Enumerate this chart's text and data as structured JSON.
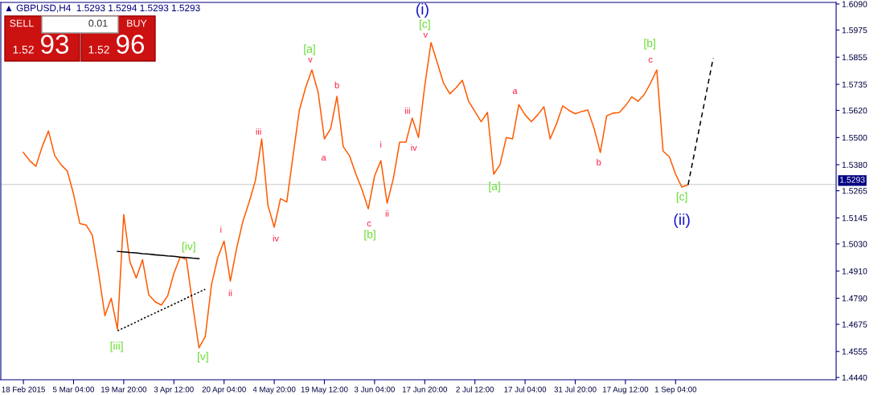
{
  "chart_data": {
    "type": "line",
    "title": "▲ GBPUSD,H4  1.5293 1.5294 1.5293 1.5293",
    "categories": [
      "18 Feb 2015",
      null,
      null,
      null,
      null,
      null,
      null,
      null,
      "5 Mar 04:00",
      null,
      null,
      null,
      null,
      null,
      null,
      null,
      "19 Mar 20:00",
      null,
      null,
      null,
      null,
      null,
      null,
      null,
      "3 Apr 12:00",
      null,
      null,
      null,
      null,
      null,
      null,
      null,
      "20 Apr 04:00",
      null,
      null,
      null,
      null,
      null,
      null,
      null,
      "4 May 20:00",
      null,
      null,
      null,
      null,
      null,
      null,
      null,
      "19 May 12:00",
      null,
      null,
      null,
      null,
      null,
      null,
      null,
      "3 Jun 04:00",
      null,
      null,
      null,
      null,
      null,
      null,
      null,
      "17 Jun 20:00",
      null,
      null,
      null,
      null,
      null,
      null,
      null,
      "2 Jul 12:00",
      null,
      null,
      null,
      null,
      null,
      null,
      null,
      "17 Jul 04:00",
      null,
      null,
      null,
      null,
      null,
      null,
      null,
      "31 Jul 20:00",
      null,
      null,
      null,
      null,
      null,
      null,
      null,
      "17 Aug 12:00",
      null,
      null,
      null,
      null,
      null,
      null,
      null,
      "1 Sep 04:00",
      null,
      null,
      null,
      null,
      null,
      null,
      null,
      null,
      null,
      null,
      null,
      null,
      null,
      null,
      null,
      null,
      null,
      null,
      null,
      null,
      null,
      null,
      null,
      null,
      null
    ],
    "ylim": [
      1.443,
      1.6097
    ],
    "yticks": [
      {
        "value": 1.609,
        "label": "1.6090"
      },
      1.5975,
      1.5855,
      1.5735,
      {
        "value": 1.562,
        "label": "1.5620"
      },
      {
        "value": 1.55,
        "label": "1.5500"
      },
      {
        "value": 1.538,
        "label": "1.5380"
      },
      1.5265,
      1.5145,
      {
        "value": 1.503,
        "label": "1.5030"
      },
      {
        "value": 1.491,
        "label": "1.4910"
      },
      {
        "value": 1.479,
        "label": "1.4790"
      },
      1.4675,
      1.4555,
      {
        "value": 1.444,
        "label": "1.4440"
      }
    ],
    "series": [
      {
        "color": "#ff5a00",
        "line_style": "solid",
        "values": [
          1.5434,
          1.5398,
          1.5373,
          1.546,
          1.5529,
          1.542,
          1.538,
          1.5352,
          1.525,
          1.512,
          1.5114,
          1.5068,
          1.49,
          1.4713,
          1.479,
          1.4653,
          1.516,
          1.495,
          1.488,
          1.496,
          1.4805,
          1.4775,
          1.476,
          1.48,
          1.49,
          1.4972,
          1.4962,
          1.476,
          1.4571,
          1.462,
          1.485,
          1.497,
          1.5043,
          1.4866,
          1.501,
          1.513,
          1.5215,
          1.531,
          1.5494,
          1.52,
          1.5104,
          1.523,
          1.5215,
          1.542,
          1.562,
          1.572,
          1.5799,
          1.57,
          1.5494,
          1.554,
          1.5682,
          1.546,
          1.542,
          1.534,
          1.527,
          1.5185,
          1.533,
          1.5398,
          1.521,
          1.532,
          1.548,
          1.548,
          1.5586,
          1.55,
          1.5728,
          1.592,
          1.583,
          1.574,
          1.5693,
          1.572,
          1.5753,
          1.566,
          1.5615,
          1.557,
          1.5611,
          1.5338,
          1.538,
          1.55,
          1.5494,
          1.5646,
          1.56,
          1.557,
          1.56,
          1.5636,
          1.5494,
          1.556,
          1.564,
          1.562,
          1.5605,
          1.5615,
          1.5622,
          1.554,
          1.5434,
          1.5595,
          1.5608,
          1.561,
          1.564,
          1.568,
          1.566,
          1.569,
          1.574,
          1.5799,
          1.544,
          1.5415,
          1.5338,
          1.5281,
          1.5292,
          null,
          null,
          null,
          null,
          null,
          null,
          null,
          null,
          null,
          null,
          null,
          null,
          null,
          null,
          null,
          null,
          null,
          null,
          null,
          null,
          null,
          null,
          null
        ]
      },
      {
        "color": "#000000",
        "line_style": "dashed",
        "values": [
          null,
          null,
          null,
          null,
          null,
          null,
          null,
          null,
          null,
          null,
          null,
          null,
          null,
          null,
          null,
          null,
          null,
          null,
          null,
          null,
          null,
          null,
          null,
          null,
          null,
          null,
          null,
          null,
          null,
          null,
          null,
          null,
          null,
          null,
          null,
          null,
          null,
          null,
          null,
          null,
          null,
          null,
          null,
          null,
          null,
          null,
          null,
          null,
          null,
          null,
          null,
          null,
          null,
          null,
          null,
          null,
          null,
          null,
          null,
          null,
          null,
          null,
          null,
          null,
          null,
          null,
          null,
          null,
          null,
          null,
          null,
          null,
          null,
          null,
          null,
          null,
          null,
          null,
          null,
          null,
          null,
          null,
          null,
          null,
          null,
          null,
          null,
          null,
          null,
          null,
          null,
          null,
          null,
          null,
          null,
          null,
          null,
          null,
          null,
          null,
          null,
          null,
          null,
          null,
          null,
          null,
          1.5292,
          1.5432,
          1.5572,
          1.5712,
          1.5852,
          null,
          null,
          null,
          null,
          null,
          null,
          null,
          null,
          null,
          null,
          null,
          null,
          null,
          null,
          null,
          null,
          null,
          null,
          null
        ]
      },
      {
        "color": "#000000",
        "line_style": "solid",
        "values": [
          null,
          null,
          null,
          null,
          null,
          null,
          null,
          null,
          null,
          null,
          null,
          null,
          null,
          null,
          null,
          1.4997,
          1.4995,
          1.4992,
          1.499,
          1.4987,
          1.4985,
          1.4982,
          1.498,
          1.4977,
          1.4975,
          1.4972,
          1.497,
          1.4967,
          1.4965,
          null,
          null,
          null,
          null,
          null,
          null,
          null,
          null,
          null,
          null,
          null,
          null,
          null,
          null,
          null,
          null,
          null,
          null,
          null,
          null,
          null,
          null,
          null,
          null,
          null,
          null,
          null,
          null,
          null,
          null,
          null,
          null,
          null,
          null,
          null,
          null,
          null,
          null,
          null,
          null,
          null,
          null,
          null,
          null,
          null,
          null,
          null,
          null,
          null,
          null,
          null,
          null,
          null,
          null,
          null,
          null,
          null,
          null,
          null,
          null,
          null,
          null,
          null,
          null,
          null,
          null,
          null,
          null,
          null,
          null,
          null,
          null,
          null,
          null,
          null,
          null,
          null,
          null,
          null,
          null,
          null,
          null,
          null,
          null,
          null,
          null,
          null,
          null,
          null,
          null,
          null,
          null,
          null,
          null,
          null,
          null,
          null,
          null,
          null,
          null,
          null
        ]
      },
      {
        "color": "#000000",
        "line_style": "dotted",
        "values": [
          null,
          null,
          null,
          null,
          null,
          null,
          null,
          null,
          null,
          null,
          null,
          null,
          null,
          null,
          null,
          1.4646,
          1.4659,
          1.4672,
          1.4685,
          1.4699,
          1.4712,
          1.4725,
          1.4738,
          1.4751,
          1.4764,
          1.4777,
          1.4791,
          1.4804,
          1.4817,
          1.483,
          null,
          null,
          null,
          null,
          null,
          null,
          null,
          null,
          null,
          null,
          null,
          null,
          null,
          null,
          null,
          null,
          null,
          null,
          null,
          null,
          null,
          null,
          null,
          null,
          null,
          null,
          null,
          null,
          null,
          null,
          null,
          null,
          null,
          null,
          null,
          null,
          null,
          null,
          null,
          null,
          null,
          null,
          null,
          null,
          null,
          null,
          null,
          null,
          null,
          null,
          null,
          null,
          null,
          null,
          null,
          null,
          null,
          null,
          null,
          null,
          null,
          null,
          null,
          null,
          null,
          null,
          null,
          null,
          null,
          null,
          null,
          null,
          null,
          null,
          null,
          null,
          null,
          null,
          null,
          null,
          null,
          null,
          null,
          null,
          null,
          null,
          null,
          null,
          null,
          null,
          null,
          null,
          null,
          null,
          null,
          null,
          null,
          null,
          null,
          null
        ]
      }
    ],
    "ref_lines": [
      {
        "axis": "y",
        "value": 1.5293,
        "label": "1.5293",
        "color": "#c8c8c8"
      }
    ],
    "annotations": [
      "SELL",
      "0.01",
      "BUY",
      "1.52",
      "93",
      "1.52",
      "96",
      "[iii]",
      "[iv]",
      "[v]",
      "[a]",
      "[b]",
      "[c]",
      "[a]",
      "[b]",
      "[c]",
      "i",
      "ii",
      "iii",
      "iv",
      "v",
      "a",
      "b",
      "c",
      "i",
      "ii",
      "iii",
      "iv",
      "v",
      "a",
      "b",
      "c",
      "(i)",
      "(ii)"
    ]
  }
}
